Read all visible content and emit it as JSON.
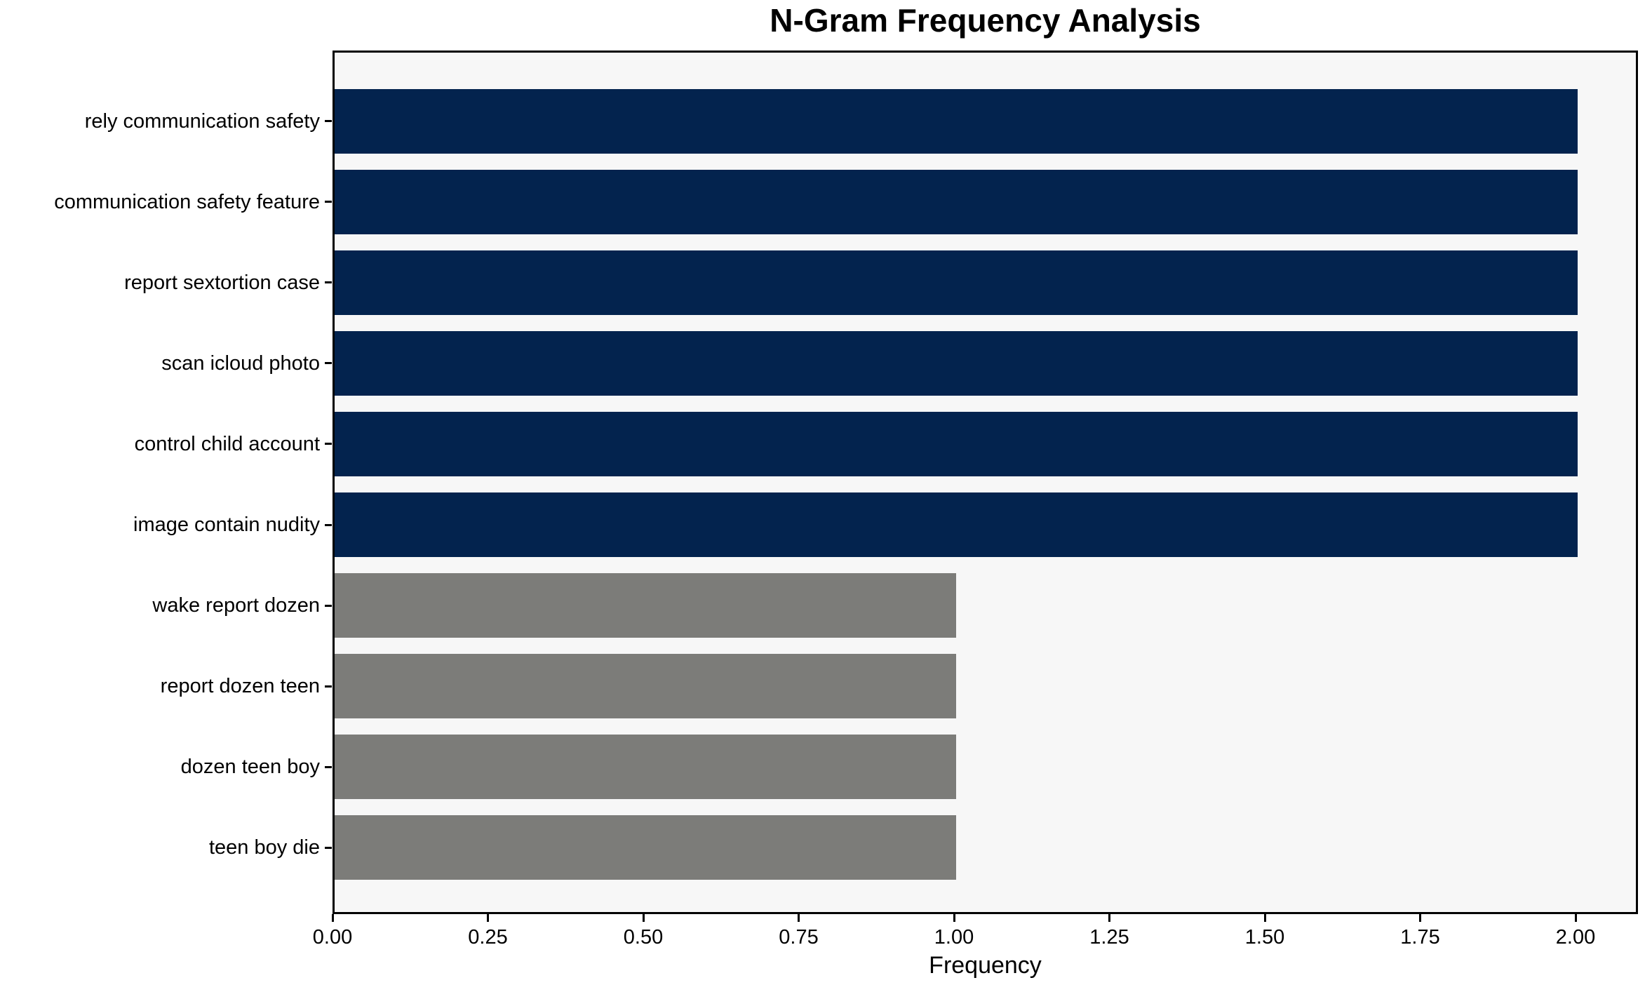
{
  "chart_data": {
    "type": "bar",
    "orientation": "horizontal",
    "title": "N-Gram Frequency Analysis",
    "xlabel": "Frequency",
    "ylabel": "",
    "categories": [
      "rely communication safety",
      "communication safety feature",
      "report sextortion case",
      "scan icloud photo",
      "control child account",
      "image contain nudity",
      "wake report dozen",
      "report dozen teen",
      "dozen teen boy",
      "teen boy die"
    ],
    "values": [
      2,
      2,
      2,
      2,
      2,
      2,
      1,
      1,
      1,
      1
    ],
    "xlim": [
      0,
      2.1
    ],
    "xticks": [
      {
        "value": 0.0,
        "label": "0.00"
      },
      {
        "value": 0.25,
        "label": "0.25"
      },
      {
        "value": 0.5,
        "label": "0.50"
      },
      {
        "value": 0.75,
        "label": "0.75"
      },
      {
        "value": 1.0,
        "label": "1.00"
      },
      {
        "value": 1.25,
        "label": "1.25"
      },
      {
        "value": 1.5,
        "label": "1.50"
      },
      {
        "value": 1.75,
        "label": "1.75"
      },
      {
        "value": 2.0,
        "label": "2.00"
      }
    ],
    "bar_colors": [
      "#03234e",
      "#03234e",
      "#03234e",
      "#03234e",
      "#03234e",
      "#03234e",
      "#7c7c79",
      "#7c7c79",
      "#7c7c79",
      "#7c7c79"
    ],
    "grid": false,
    "legend": null,
    "colors": {
      "high_frequency_bar": "#03234e",
      "low_frequency_bar": "#7c7c79",
      "plot_background": "#f7f7f7",
      "figure_background": "#ffffff",
      "spine": "#000000",
      "text": "#000000"
    }
  }
}
